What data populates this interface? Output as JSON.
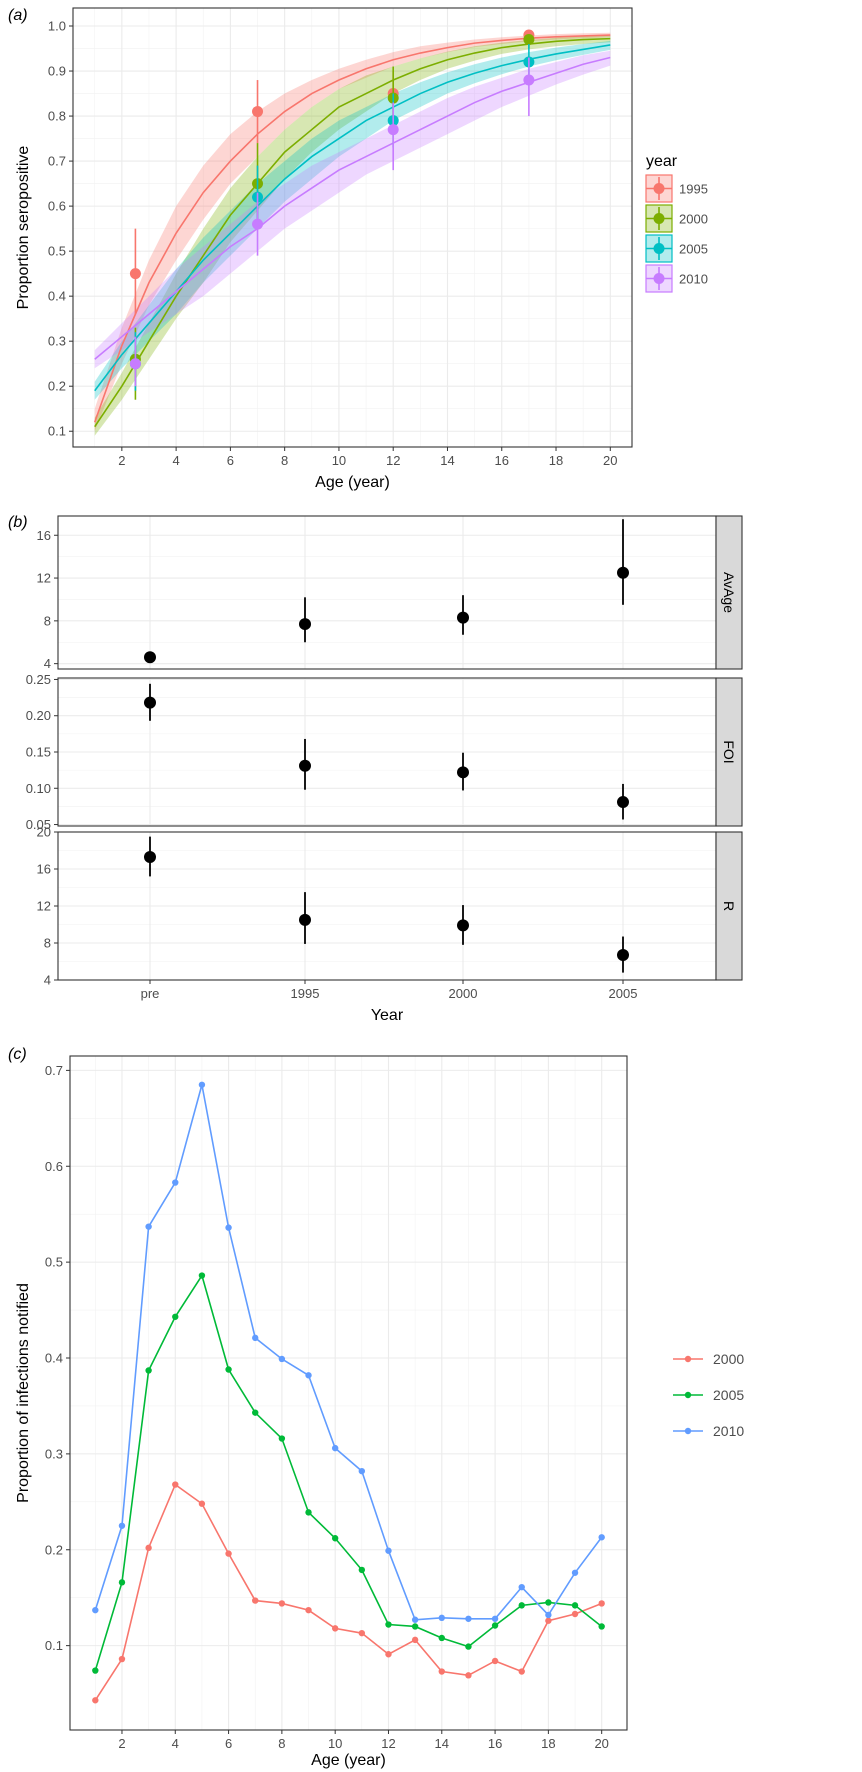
{
  "panel_labels": {
    "a": "(a)",
    "b": "(b)",
    "c": "(c)"
  },
  "chart_data": [
    {
      "type": "line",
      "panel": "(a)",
      "xlabel": "Age (year)",
      "ylabel": "Proportion seropositive",
      "xlim": [
        0.2,
        20.8
      ],
      "ylim": [
        0.065,
        1.04
      ],
      "x_ticks": [
        2,
        4,
        6,
        8,
        10,
        12,
        14,
        16,
        18,
        20
      ],
      "y_ticks": [
        0.1,
        0.2,
        0.3,
        0.4,
        0.5,
        0.6,
        0.7,
        0.8,
        0.9,
        1.0
      ],
      "x_tick_labels": [
        "2",
        "4",
        "6",
        "8",
        "10",
        "12",
        "14",
        "16",
        "18",
        "20"
      ],
      "y_tick_labels": [
        "0.1",
        "0.2",
        "0.3",
        "0.4",
        "0.5",
        "0.6",
        "0.7",
        "0.8",
        "0.9",
        "1.0"
      ],
      "grid": true,
      "legend": {
        "title": "year",
        "placement": "right"
      },
      "series": [
        {
          "name": "1995",
          "color": "#F8766D",
          "x": [
            1,
            2,
            3,
            4,
            5,
            6,
            7,
            8,
            9,
            10,
            11,
            12,
            13,
            14,
            15,
            16,
            17,
            18,
            19,
            20
          ],
          "y": [
            0.12,
            0.29,
            0.43,
            0.54,
            0.63,
            0.7,
            0.76,
            0.81,
            0.85,
            0.88,
            0.905,
            0.925,
            0.94,
            0.952,
            0.962,
            0.968,
            0.973,
            0.976,
            0.978,
            0.98
          ],
          "lower": [
            0.1,
            0.25,
            0.38,
            0.48,
            0.57,
            0.65,
            0.71,
            0.77,
            0.82,
            0.86,
            0.885,
            0.91,
            0.928,
            0.942,
            0.953,
            0.96,
            0.966,
            0.97,
            0.973,
            0.975
          ],
          "upper": [
            0.15,
            0.33,
            0.48,
            0.6,
            0.69,
            0.76,
            0.81,
            0.85,
            0.88,
            0.905,
            0.925,
            0.942,
            0.955,
            0.963,
            0.97,
            0.975,
            0.979,
            0.982,
            0.984,
            0.985
          ],
          "points": [
            {
              "x": 2.5,
              "y": 0.45,
              "lo": 0.36,
              "hi": 0.55
            },
            {
              "x": 7,
              "y": 0.81,
              "lo": 0.74,
              "hi": 0.88
            },
            {
              "x": 12,
              "y": 0.85,
              "lo": 0.8,
              "hi": 0.9
            },
            {
              "x": 17,
              "y": 0.98,
              "lo": 0.96,
              "hi": 0.99
            }
          ]
        },
        {
          "name": "2000",
          "color": "#7CAE00",
          "x": [
            1,
            2,
            3,
            4,
            5,
            6,
            7,
            8,
            9,
            10,
            11,
            12,
            13,
            14,
            15,
            16,
            17,
            18,
            19,
            20
          ],
          "y": [
            0.11,
            0.2,
            0.3,
            0.4,
            0.49,
            0.58,
            0.65,
            0.72,
            0.77,
            0.82,
            0.85,
            0.88,
            0.905,
            0.925,
            0.94,
            0.952,
            0.96,
            0.966,
            0.97,
            0.972
          ],
          "lower": [
            0.09,
            0.17,
            0.26,
            0.35,
            0.43,
            0.52,
            0.59,
            0.66,
            0.72,
            0.77,
            0.81,
            0.85,
            0.88,
            0.905,
            0.923,
            0.938,
            0.948,
            0.955,
            0.96,
            0.964
          ],
          "upper": [
            0.13,
            0.23,
            0.34,
            0.45,
            0.55,
            0.64,
            0.71,
            0.77,
            0.82,
            0.86,
            0.89,
            0.91,
            0.928,
            0.943,
            0.955,
            0.963,
            0.969,
            0.974,
            0.977,
            0.979
          ],
          "points": [
            {
              "x": 2.5,
              "y": 0.26,
              "lo": 0.17,
              "hi": 0.33
            },
            {
              "x": 7,
              "y": 0.65,
              "lo": 0.56,
              "hi": 0.74
            },
            {
              "x": 12,
              "y": 0.84,
              "lo": 0.77,
              "hi": 0.91
            },
            {
              "x": 17,
              "y": 0.97,
              "lo": 0.95,
              "hi": 0.98
            }
          ]
        },
        {
          "name": "2005",
          "color": "#00BFC4",
          "x": [
            1,
            2,
            3,
            4,
            5,
            6,
            7,
            8,
            9,
            10,
            11,
            12,
            13,
            14,
            15,
            16,
            17,
            18,
            19,
            20
          ],
          "y": [
            0.19,
            0.27,
            0.34,
            0.41,
            0.48,
            0.54,
            0.6,
            0.66,
            0.71,
            0.75,
            0.79,
            0.82,
            0.85,
            0.875,
            0.895,
            0.912,
            0.926,
            0.938,
            0.948,
            0.958
          ],
          "lower": [
            0.17,
            0.24,
            0.3,
            0.36,
            0.43,
            0.49,
            0.55,
            0.61,
            0.66,
            0.71,
            0.75,
            0.79,
            0.82,
            0.85,
            0.873,
            0.893,
            0.91,
            0.924,
            0.936,
            0.947
          ],
          "upper": [
            0.21,
            0.3,
            0.38,
            0.46,
            0.53,
            0.59,
            0.65,
            0.7,
            0.75,
            0.79,
            0.82,
            0.85,
            0.875,
            0.897,
            0.915,
            0.93,
            0.942,
            0.952,
            0.96,
            0.967
          ],
          "points": [
            {
              "x": 2.5,
              "y": 0.25,
              "lo": 0.19,
              "hi": 0.32
            },
            {
              "x": 7,
              "y": 0.62,
              "lo": 0.55,
              "hi": 0.69
            },
            {
              "x": 12,
              "y": 0.79,
              "lo": 0.73,
              "hi": 0.85
            },
            {
              "x": 17,
              "y": 0.92,
              "lo": 0.88,
              "hi": 0.96
            }
          ]
        },
        {
          "name": "2010",
          "color": "#C77CFF",
          "x": [
            1,
            2,
            3,
            4,
            5,
            6,
            7,
            8,
            9,
            10,
            11,
            12,
            13,
            14,
            15,
            16,
            17,
            18,
            19,
            20
          ],
          "y": [
            0.26,
            0.31,
            0.36,
            0.41,
            0.46,
            0.51,
            0.55,
            0.6,
            0.64,
            0.68,
            0.71,
            0.74,
            0.77,
            0.8,
            0.83,
            0.855,
            0.875,
            0.895,
            0.915,
            0.93
          ],
          "lower": [
            0.24,
            0.28,
            0.32,
            0.36,
            0.4,
            0.45,
            0.5,
            0.55,
            0.59,
            0.63,
            0.67,
            0.7,
            0.73,
            0.76,
            0.79,
            0.82,
            0.845,
            0.87,
            0.892,
            0.912
          ],
          "upper": [
            0.28,
            0.34,
            0.4,
            0.46,
            0.51,
            0.56,
            0.61,
            0.65,
            0.69,
            0.72,
            0.75,
            0.78,
            0.81,
            0.84,
            0.865,
            0.885,
            0.905,
            0.92,
            0.935,
            0.945
          ],
          "points": [
            {
              "x": 2.5,
              "y": 0.25,
              "lo": 0.2,
              "hi": 0.31
            },
            {
              "x": 7,
              "y": 0.56,
              "lo": 0.49,
              "hi": 0.63
            },
            {
              "x": 12,
              "y": 0.77,
              "lo": 0.68,
              "hi": 0.83
            },
            {
              "x": 17,
              "y": 0.88,
              "lo": 0.8,
              "hi": 0.93
            }
          ]
        }
      ]
    },
    {
      "type": "scatter",
      "panel": "(b)",
      "xlabel": "Year",
      "categories": [
        "pre",
        "1995",
        "2000",
        "2005"
      ],
      "facets": [
        {
          "name": "AvAge",
          "ylim": [
            3.5,
            17.8
          ],
          "y_ticks": [
            4,
            8,
            12,
            16
          ],
          "y_tick_labels": [
            "4",
            "8",
            "12",
            "16"
          ],
          "values": [
            4.6,
            7.7,
            8.3,
            12.5
          ],
          "lower": [
            4.3,
            6.0,
            6.7,
            9.5
          ],
          "upper": [
            5.0,
            10.2,
            10.4,
            17.5
          ]
        },
        {
          "name": "FOI",
          "ylim": [
            0.048,
            0.252
          ],
          "y_ticks": [
            0.05,
            0.1,
            0.15,
            0.2,
            0.25
          ],
          "y_tick_labels": [
            "0.05",
            "0.10",
            "0.15",
            "0.20",
            "0.25"
          ],
          "values": [
            0.218,
            0.131,
            0.122,
            0.081
          ],
          "lower": [
            0.193,
            0.098,
            0.097,
            0.057
          ],
          "upper": [
            0.244,
            0.168,
            0.149,
            0.106
          ]
        },
        {
          "name": "R",
          "ylim": [
            4.0,
            20.0
          ],
          "y_ticks": [
            4,
            8,
            12,
            16,
            20
          ],
          "y_tick_labels": [
            "4",
            "8",
            "12",
            "16",
            "20"
          ],
          "values": [
            17.3,
            10.5,
            9.9,
            6.7
          ],
          "lower": [
            15.2,
            7.9,
            7.8,
            4.8
          ],
          "upper": [
            19.5,
            13.5,
            12.1,
            8.7
          ]
        }
      ],
      "grid": true
    },
    {
      "type": "line",
      "panel": "(c)",
      "xlabel": "Age (year)",
      "ylabel": "Proportion of infections notified",
      "xlim": [
        0.05,
        20.95
      ],
      "ylim": [
        0.012,
        0.715
      ],
      "x_ticks": [
        2,
        4,
        6,
        8,
        10,
        12,
        14,
        16,
        18,
        20
      ],
      "y_ticks": [
        0.1,
        0.2,
        0.3,
        0.4,
        0.5,
        0.6,
        0.7
      ],
      "x_tick_labels": [
        "2",
        "4",
        "6",
        "8",
        "10",
        "12",
        "14",
        "16",
        "18",
        "20"
      ],
      "y_tick_labels": [
        "0.1",
        "0.2",
        "0.3",
        "0.4",
        "0.5",
        "0.6",
        "0.7"
      ],
      "grid": true,
      "legend": {
        "placement": "right"
      },
      "x": [
        1,
        2,
        3,
        4,
        5,
        6,
        7,
        8,
        9,
        10,
        11,
        12,
        13,
        14,
        15,
        16,
        17,
        18,
        19,
        20
      ],
      "series": [
        {
          "name": "2000",
          "color": "#F8766D",
          "values": [
            0.043,
            0.086,
            0.202,
            0.268,
            0.248,
            0.196,
            0.147,
            0.144,
            0.137,
            0.118,
            0.113,
            0.091,
            0.106,
            0.073,
            0.069,
            0.084,
            0.073,
            0.126,
            0.133,
            0.144
          ]
        },
        {
          "name": "2005",
          "color": "#00BA38",
          "values": [
            0.074,
            0.166,
            0.387,
            0.443,
            0.486,
            0.388,
            0.343,
            0.316,
            0.239,
            0.212,
            0.179,
            0.122,
            0.12,
            0.108,
            0.099,
            0.121,
            0.142,
            0.145,
            0.142,
            0.12
          ]
        },
        {
          "name": "2010",
          "color": "#619CFF",
          "values": [
            0.137,
            0.225,
            0.537,
            0.583,
            0.685,
            0.536,
            0.421,
            0.399,
            0.382,
            0.306,
            0.282,
            0.199,
            0.127,
            0.129,
            0.128,
            0.128,
            0.161,
            0.132,
            0.176,
            0.213
          ]
        }
      ]
    }
  ]
}
